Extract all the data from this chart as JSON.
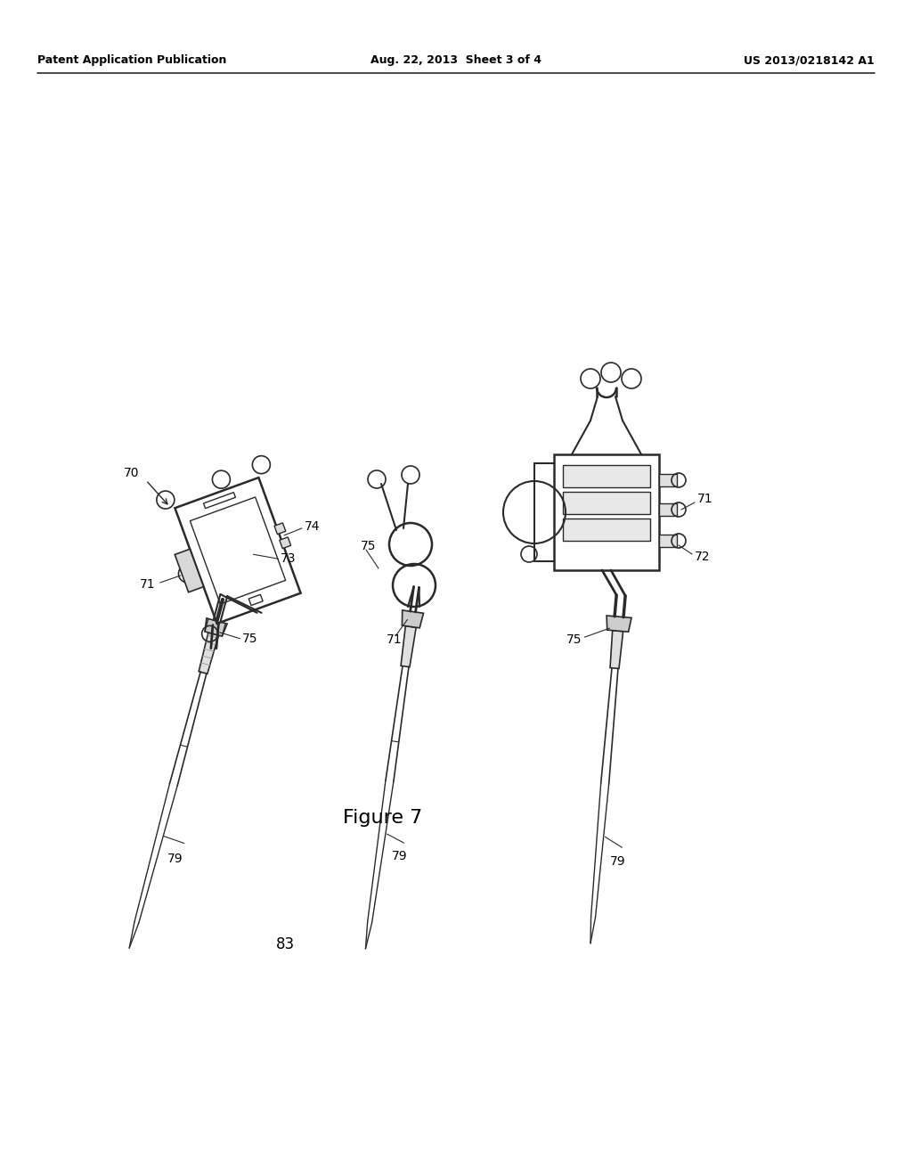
{
  "background_color": "#ffffff",
  "line_color": "#2a2a2a",
  "header_left": "Patent Application Publication",
  "header_center": "Aug. 22, 2013  Sheet 3 of 4",
  "header_right": "US 2013/0218142 A1",
  "figure_label": "Figure 7",
  "page_number": "83"
}
